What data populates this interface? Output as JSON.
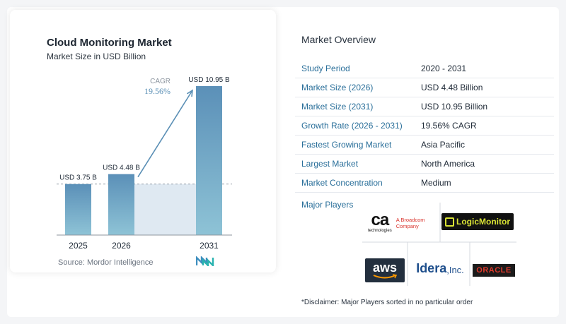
{
  "chart_data": {
    "type": "bar",
    "title": "Cloud Monitoring Market",
    "subtitle": "Market Size in USD Billion",
    "categories": [
      "2025",
      "2026",
      "2031"
    ],
    "values": [
      3.75,
      4.48,
      10.95
    ],
    "value_labels": [
      "USD 3.75 B",
      "USD 4.48 B",
      "USD 10.95 B"
    ],
    "cagr_label": "CAGR",
    "cagr_value": "19.56%",
    "colors": {
      "bar": "#6a9fc4",
      "bar_top": "#5b90b8",
      "bar_bottom": "#8ec3d6",
      "shade": "#dfe9f2",
      "arrow": "#5a8fb5",
      "axis": "#9aa3ad"
    }
  },
  "source": "Source:",
  "source_name": "Mordor Intelligence",
  "overview": {
    "title": "Market Overview",
    "rows": [
      {
        "label": "Study Period",
        "value": "2020 - 2031"
      },
      {
        "label": "Market Size (2026)",
        "value": "USD 4.48 Billion"
      },
      {
        "label": "Market Size (2031)",
        "value": "USD 10.95 Billion"
      },
      {
        "label": "Growth Rate (2026 - 2031)",
        "value": "19.56% CAGR"
      },
      {
        "label": "Fastest Growing Market",
        "value": "Asia Pacific"
      },
      {
        "label": "Largest Market",
        "value": "North America"
      },
      {
        "label": "Market Concentration",
        "value": "Medium"
      }
    ]
  },
  "players": {
    "title": "Major Players",
    "ca_mark": "ca",
    "ca_sub": "technologies",
    "ca_tag": "A Broadcom\nCompany",
    "logicmonitor": "LogicMonitor",
    "aws": "aws",
    "idera": "Idera",
    "idera_suffix": ",Inc.",
    "oracle": "ORACLE"
  },
  "disclaimer": "*Disclaimer: Major Players sorted in no particular order"
}
